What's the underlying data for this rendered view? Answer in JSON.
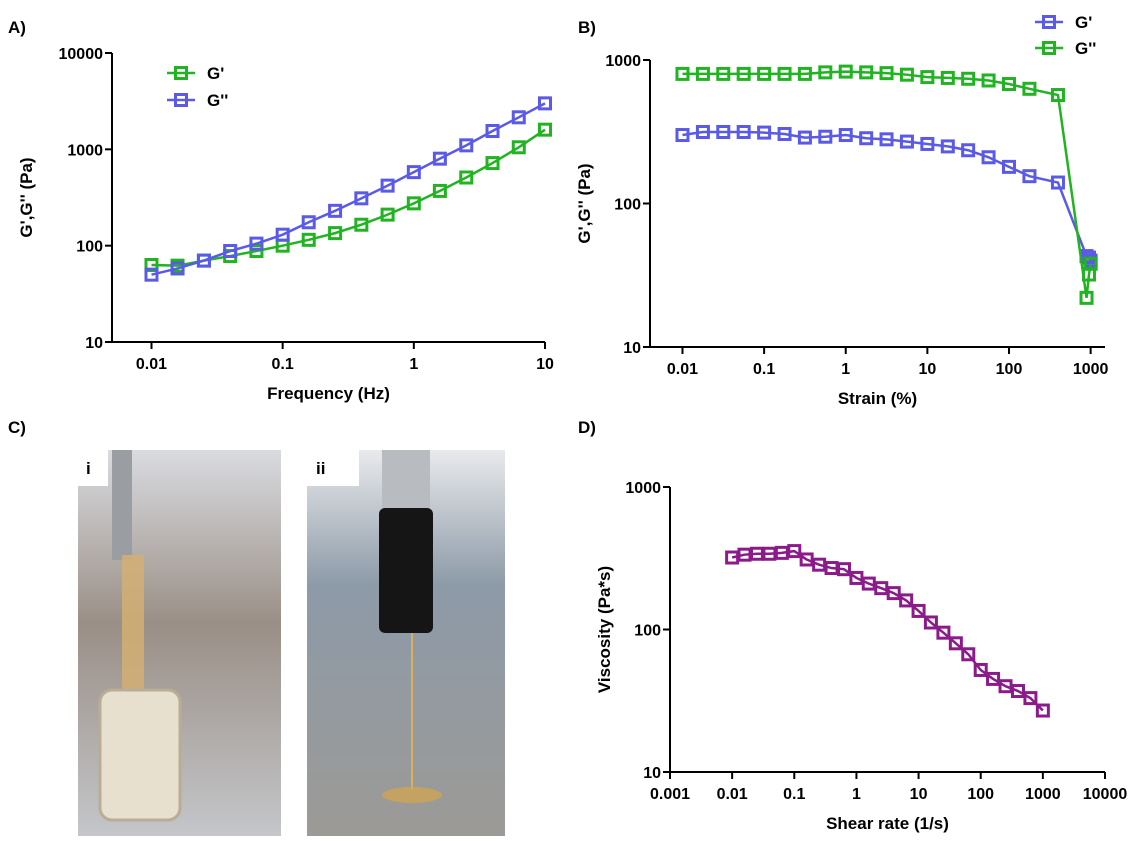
{
  "chart_data": [
    {
      "type": "line",
      "label": "A)",
      "xlabel": "Frequency (Hz)",
      "ylabel": "G',G'' (Pa)",
      "xscale": "log",
      "yscale": "log",
      "xlim": [
        0.005,
        10
      ],
      "ylim": [
        10,
        10000
      ],
      "xticks": [
        0.01,
        0.1,
        1,
        10
      ],
      "yticks": [
        10,
        100,
        1000,
        10000
      ],
      "legend": "upper left",
      "x": [
        0.01,
        0.0158,
        0.0251,
        0.0398,
        0.0631,
        0.1,
        0.158,
        0.251,
        0.398,
        0.631,
        1,
        1.58,
        2.51,
        3.98,
        6.31,
        10
      ],
      "series": [
        {
          "name": "G'",
          "color": "#22b322",
          "values": [
            63,
            62,
            70,
            78,
            88,
            100,
            115,
            135,
            165,
            210,
            275,
            370,
            510,
            720,
            1050,
            1600
          ]
        },
        {
          "name": "G''",
          "color": "#5a5ae6",
          "values": [
            50,
            58,
            70,
            88,
            105,
            130,
            175,
            230,
            310,
            420,
            580,
            800,
            1100,
            1550,
            2150,
            3000
          ]
        }
      ]
    },
    {
      "type": "line",
      "label": "B)",
      "xlabel": "Strain (%)",
      "ylabel": "G',G'' (Pa)",
      "xscale": "log",
      "yscale": "log",
      "xlim": [
        0.004,
        1500
      ],
      "ylim": [
        10,
        1000
      ],
      "xticks": [
        0.01,
        0.1,
        1,
        10,
        100,
        1000
      ],
      "yticks": [
        10,
        100,
        1000
      ],
      "legend": "upper right",
      "x": [
        0.01,
        0.0178,
        0.0316,
        0.0562,
        0.1,
        0.178,
        0.316,
        0.562,
        1,
        1.78,
        3.16,
        5.62,
        10,
        17.8,
        31.6,
        56.2,
        100,
        178,
        398,
        891,
        955,
        1000
      ],
      "series": [
        {
          "name": "G'",
          "color": "#5a5ae6",
          "values": [
            300,
            315,
            315,
            315,
            312,
            305,
            288,
            292,
            300,
            285,
            280,
            270,
            260,
            250,
            235,
            210,
            180,
            155,
            140,
            43,
            42,
            40
          ]
        },
        {
          "name": "G''",
          "color": "#22b322",
          "values": [
            800,
            800,
            800,
            800,
            800,
            800,
            800,
            820,
            830,
            820,
            810,
            790,
            760,
            750,
            740,
            720,
            680,
            630,
            570,
            22,
            32,
            38
          ]
        }
      ]
    },
    {
      "type": "line",
      "label": "D)",
      "xlabel": "Shear rate (1/s)",
      "ylabel": "Viscosity (Pa*s)",
      "xscale": "log",
      "yscale": "log",
      "xlim": [
        0.001,
        10000
      ],
      "ylim": [
        10,
        1000
      ],
      "xticks": [
        0.001,
        0.01,
        0.1,
        1,
        10,
        100,
        1000,
        10000
      ],
      "yticks": [
        10,
        100,
        1000
      ],
      "x": [
        0.01,
        0.0158,
        0.0251,
        0.0398,
        0.0631,
        0.1,
        0.158,
        0.251,
        0.398,
        0.631,
        1,
        1.58,
        2.51,
        3.98,
        6.31,
        10,
        15.8,
        25.1,
        39.8,
        63.1,
        100,
        158,
        251,
        398,
        631,
        1000
      ],
      "series": [
        {
          "color": "#8b1a8b",
          "values": [
            320,
            335,
            340,
            340,
            345,
            355,
            310,
            285,
            270,
            265,
            230,
            210,
            195,
            180,
            160,
            135,
            112,
            95,
            80,
            67,
            52,
            45,
            40,
            37,
            33,
            27
          ]
        }
      ]
    }
  ],
  "photo_panel": {
    "label": "C)",
    "photos": [
      "i",
      "ii"
    ]
  }
}
